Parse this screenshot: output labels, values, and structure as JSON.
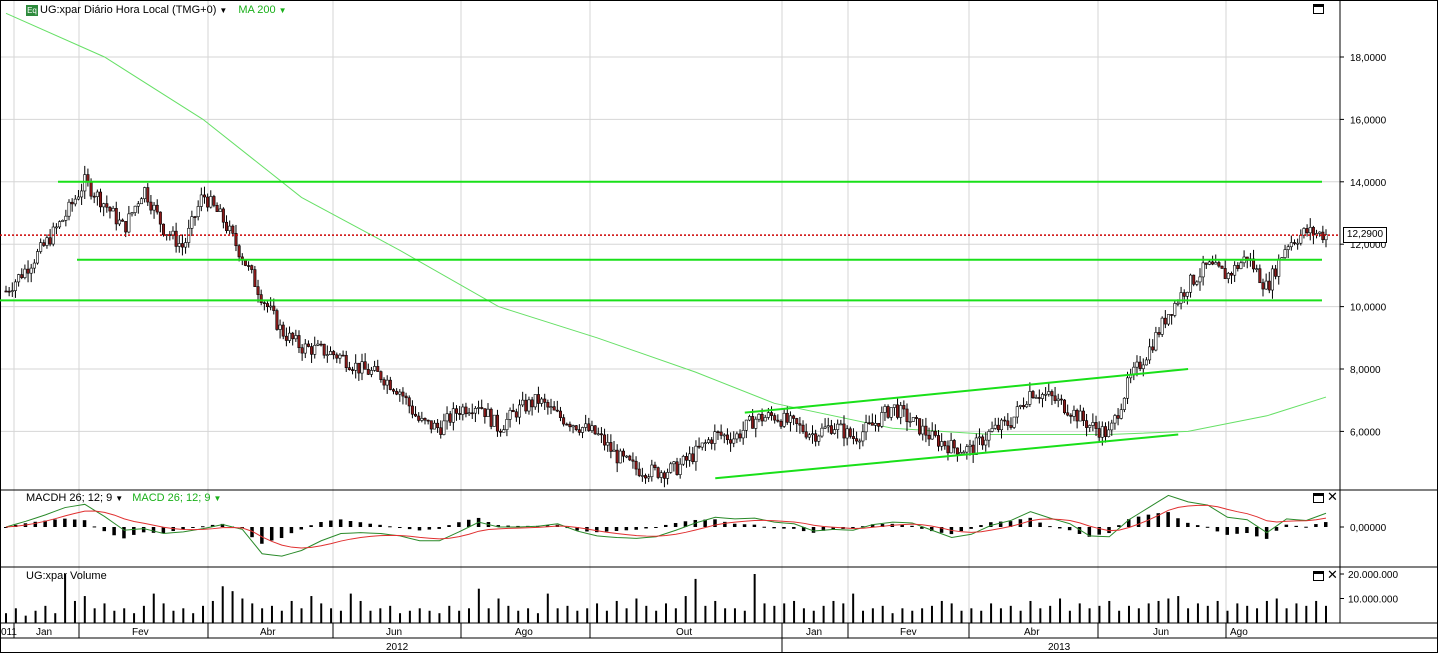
{
  "header": {
    "instrument_badge": "Eq",
    "title": "UG:xpar Diário Hora Local (TMG+0)",
    "indicator": "MA 200"
  },
  "macd_panel": {
    "label1": "MACDH 26; 12; 9",
    "label2": "MACD 26; 12; 9"
  },
  "volume_panel": {
    "label": "UG:xpar Volume"
  },
  "price_tag": "12,2900",
  "colors": {
    "trend_lines": "#19e019",
    "ma200": "#66e066",
    "current_price_line": "#cc0000",
    "macd_signal": "#e03030",
    "macd_line": "#2a8a2a"
  },
  "chart_data": {
    "type": "candlestick",
    "y_ticks": [
      "18,0000",
      "16,0000",
      "14,0000",
      "12,0000",
      "10,0000",
      "8,0000",
      "6,0000"
    ],
    "ylim": [
      4.0,
      19.5
    ],
    "macd_y_ticks": [
      "0,00000"
    ],
    "volume_y_ticks": [
      "20.000.000",
      "10.000.000"
    ],
    "x_month_labels": [
      "011",
      "Jan",
      "Fev",
      "Abr",
      "Jun",
      "Ago",
      "Out",
      "Jan",
      "Fev",
      "Abr",
      "Jun",
      "Ago"
    ],
    "x_year_labels": [
      "2012",
      "2013"
    ],
    "current_price": 12.29,
    "horizontal_lines": [
      14.0,
      11.5,
      10.2
    ],
    "price_path": [
      [
        0,
        10.5
      ],
      [
        2,
        11.2
      ],
      [
        4,
        12.0
      ],
      [
        6,
        12.9
      ],
      [
        8,
        14.0
      ],
      [
        10,
        13.3
      ],
      [
        12,
        12.5
      ],
      [
        14,
        13.8
      ],
      [
        16,
        12.5
      ],
      [
        18,
        11.9
      ],
      [
        20,
        13.6
      ],
      [
        22,
        12.8
      ],
      [
        24,
        11.6
      ],
      [
        26,
        10.3
      ],
      [
        28,
        9.2
      ],
      [
        30,
        8.7
      ],
      [
        32,
        8.6
      ],
      [
        34,
        8.4
      ],
      [
        36,
        8.0
      ],
      [
        38,
        7.8
      ],
      [
        40,
        7.3
      ],
      [
        42,
        6.3
      ],
      [
        44,
        6.1
      ],
      [
        46,
        6.7
      ],
      [
        48,
        6.9
      ],
      [
        50,
        6.1
      ],
      [
        52,
        6.7
      ],
      [
        54,
        7.0
      ],
      [
        56,
        6.5
      ],
      [
        58,
        6.2
      ],
      [
        60,
        5.9
      ],
      [
        62,
        5.2
      ],
      [
        64,
        4.8
      ],
      [
        66,
        4.7
      ],
      [
        68,
        4.8
      ],
      [
        70,
        5.3
      ],
      [
        72,
        5.9
      ],
      [
        74,
        5.8
      ],
      [
        76,
        6.4
      ],
      [
        78,
        6.5
      ],
      [
        80,
        6.2
      ],
      [
        82,
        5.9
      ],
      [
        84,
        6.2
      ],
      [
        86,
        5.8
      ],
      [
        88,
        6.2
      ],
      [
        90,
        6.8
      ],
      [
        92,
        6.3
      ],
      [
        94,
        5.8
      ],
      [
        96,
        5.5
      ],
      [
        98,
        5.4
      ],
      [
        100,
        6.0
      ],
      [
        102,
        6.3
      ],
      [
        104,
        7.3
      ],
      [
        106,
        7.1
      ],
      [
        108,
        6.7
      ],
      [
        110,
        6.2
      ],
      [
        112,
        5.9
      ],
      [
        114,
        7.6
      ],
      [
        116,
        8.6
      ],
      [
        118,
        9.8
      ],
      [
        120,
        10.7
      ],
      [
        122,
        11.3
      ],
      [
        124,
        11.0
      ],
      [
        126,
        11.6
      ],
      [
        128,
        10.6
      ],
      [
        130,
        12.0
      ],
      [
        132,
        12.4
      ],
      [
        134,
        12.3
      ]
    ],
    "ma200_path": [
      [
        0,
        19.4
      ],
      [
        10,
        18.0
      ],
      [
        20,
        16.0
      ],
      [
        30,
        13.5
      ],
      [
        40,
        11.8
      ],
      [
        50,
        10.0
      ],
      [
        60,
        9.0
      ],
      [
        70,
        7.9
      ],
      [
        78,
        6.9
      ],
      [
        90,
        6.1
      ],
      [
        100,
        5.9
      ],
      [
        112,
        5.9
      ],
      [
        120,
        6.0
      ],
      [
        128,
        6.5
      ],
      [
        134,
        7.1
      ]
    ],
    "trend_channel": {
      "upper": [
        [
          75,
          6.6
        ],
        [
          120,
          8.0
        ]
      ],
      "lower": [
        [
          72,
          4.5
        ],
        [
          119,
          5.9
        ]
      ]
    },
    "volume": [
      4,
      6,
      3,
      5,
      7,
      4,
      20,
      9,
      11,
      6,
      8,
      5,
      6,
      4,
      7,
      12,
      8,
      5,
      6,
      4,
      7,
      9,
      15,
      13,
      10,
      8,
      6,
      7,
      5,
      9,
      6,
      11,
      8,
      6,
      5,
      12,
      9,
      5,
      6,
      7,
      4,
      5,
      6,
      5,
      4,
      7,
      5,
      6,
      14,
      6,
      10,
      7,
      5,
      6,
      4,
      12,
      6,
      7,
      5,
      6,
      8,
      5,
      9,
      6,
      10,
      7,
      5,
      8,
      6,
      11,
      18,
      7,
      9,
      6,
      6,
      5,
      20,
      8,
      7,
      8,
      9,
      6,
      5,
      7,
      9,
      8,
      12,
      5,
      6,
      7,
      4,
      6,
      5,
      6,
      7,
      9,
      8,
      5,
      6,
      5,
      8,
      6,
      7,
      5,
      9,
      6,
      7,
      10,
      5,
      8,
      6,
      7,
      9,
      5,
      7,
      6,
      8,
      9,
      10,
      11,
      6,
      8,
      7,
      9,
      5,
      8,
      7,
      6,
      9,
      10,
      6,
      8,
      7,
      9,
      7
    ]
  }
}
